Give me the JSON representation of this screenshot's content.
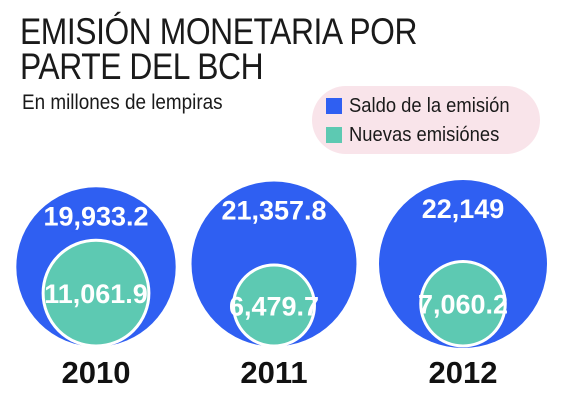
{
  "title_lines": [
    "EMISIÓN MONETARIA POR",
    "PARTE DEL BCH"
  ],
  "subtitle": "En millones de lempiras",
  "colors": {
    "saldo": "#2f5ff2",
    "nuevas": "#5dc9b2",
    "legend_bg": "#f9e4ea",
    "year_text": "#111111"
  },
  "legend": [
    {
      "label": "Saldo de la emisión",
      "color": "#2f5ff2"
    },
    {
      "label": "Nuevas emisiónes",
      "color": "#5dc9b2"
    }
  ],
  "chart_data": {
    "type": "proportional-circles",
    "categories": [
      "2010",
      "2011",
      "2012"
    ],
    "series": [
      {
        "name": "Saldo de la emisión",
        "values": [
          19933.2,
          21357.8,
          22149
        ],
        "labels": [
          "19,933.2",
          "21,357.8",
          "22,149"
        ]
      },
      {
        "name": "Nuevas emisiónes",
        "values": [
          11061.9,
          6479.7,
          7060.2
        ],
        "labels": [
          "11,061.9",
          "6,479.7",
          "7,060.2"
        ]
      }
    ]
  }
}
